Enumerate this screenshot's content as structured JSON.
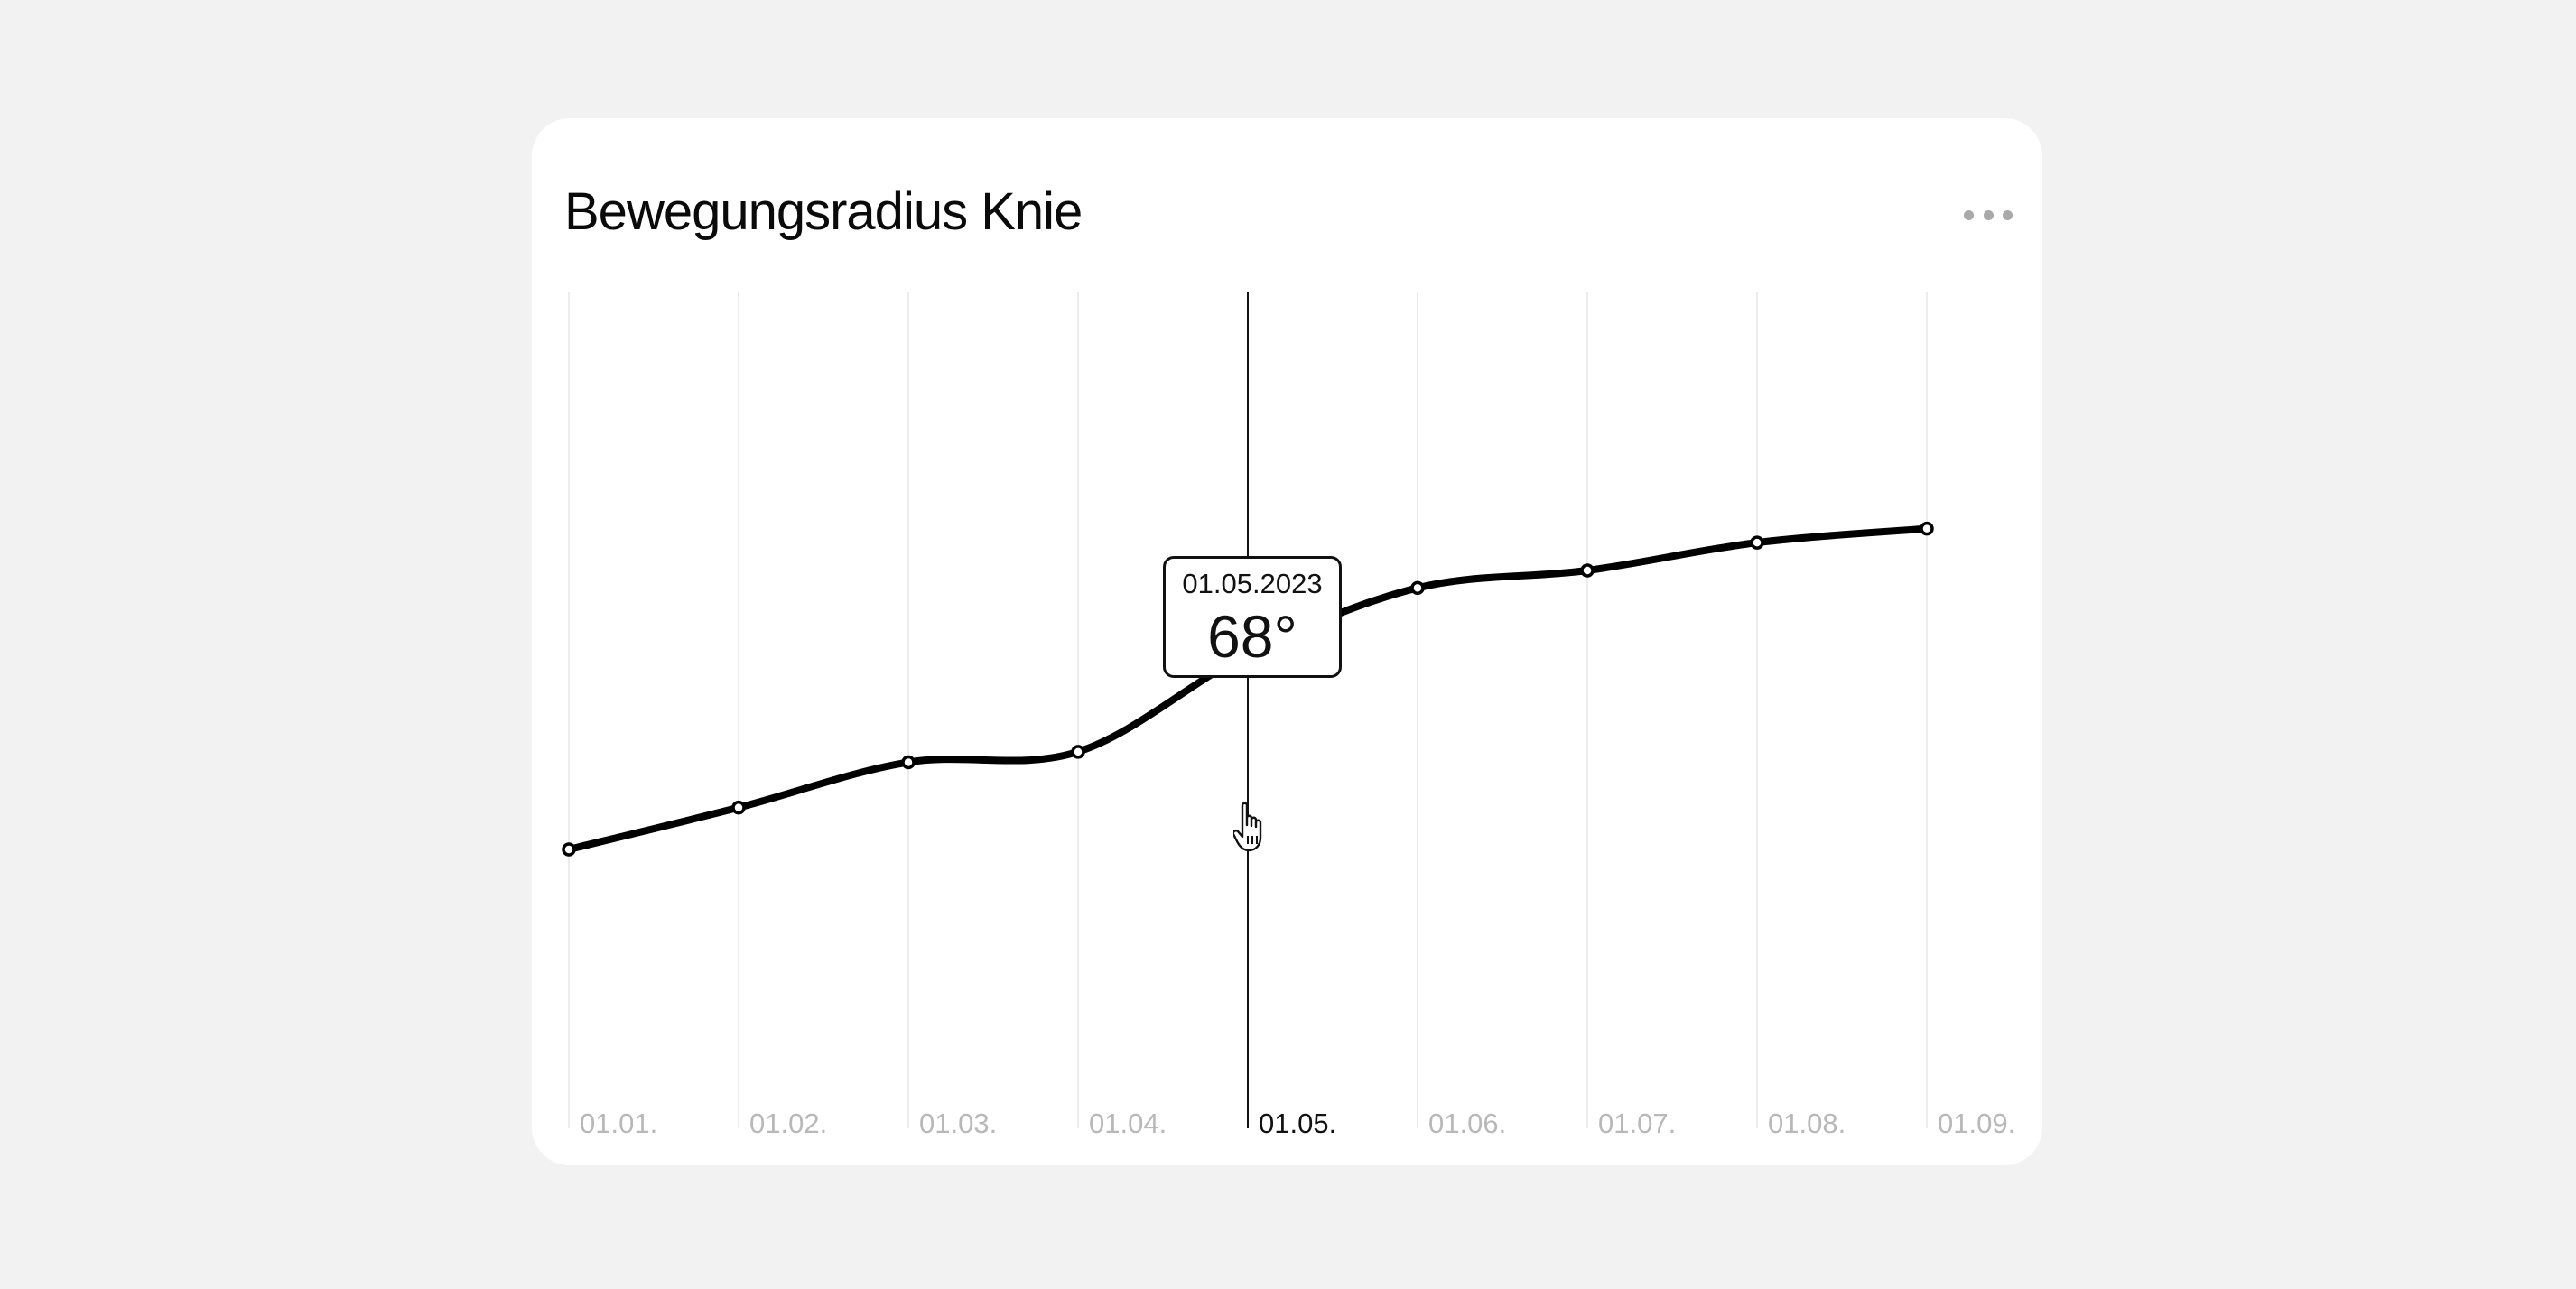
{
  "card": {
    "title": "Bewegungsradius Knie",
    "more_icon": "more-horizontal-icon"
  },
  "tooltip": {
    "date": "01.05.2023",
    "value": "68°"
  },
  "chart_data": {
    "type": "line",
    "title": "Bewegungsradius Knie",
    "xlabel": "",
    "ylabel": "",
    "categories": [
      "01.01.",
      "01.02.",
      "01.03.",
      "01.04.",
      "01.05.",
      "01.06.",
      "01.07.",
      "01.08.",
      "01.09."
    ],
    "series": [
      {
        "values": [
          40,
          46,
          52.5,
          54,
          68,
          77.5,
          80,
          84,
          86
        ]
      }
    ],
    "ylim": [
      0,
      120
    ],
    "highlighted_index": 4,
    "grid": "vertical",
    "legend": "none",
    "line_color": "#000000",
    "grid_color": "#e6e6e6",
    "highlight_grid_color": "#111111",
    "tick_color": "#b8b8b8",
    "active_tick_color": "#111111"
  },
  "colors": {
    "background": "#f2f2f2",
    "card": "#ffffff"
  }
}
